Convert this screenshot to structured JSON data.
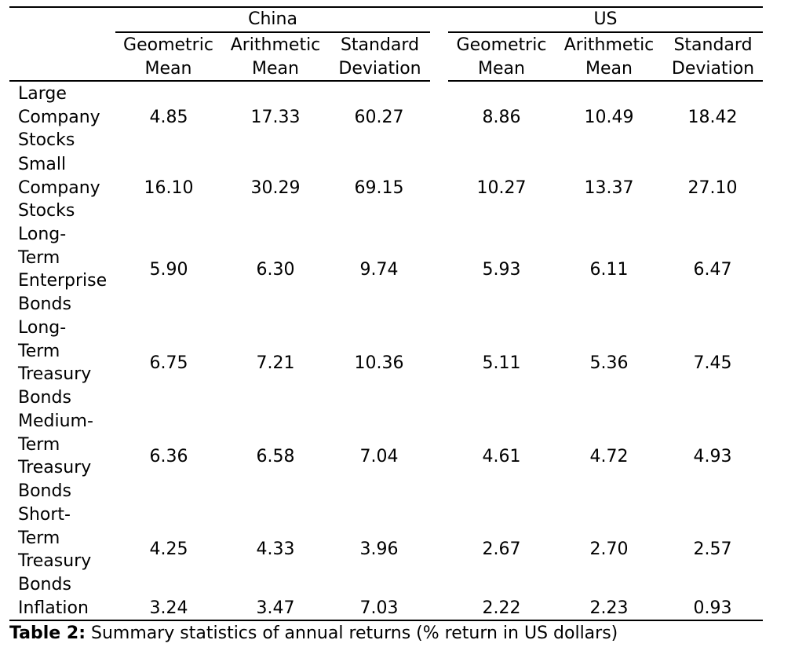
{
  "table": {
    "groups": [
      "China",
      "US"
    ],
    "columns": [
      {
        "line1": "Geometric",
        "line2": "Mean"
      },
      {
        "line1": "Arithmetic",
        "line2": "Mean"
      },
      {
        "line1": "Standard",
        "line2": "Deviation"
      },
      {
        "line1": "Geometric",
        "line2": "Mean"
      },
      {
        "line1": "Arithmetic",
        "line2": "Mean"
      },
      {
        "line1": "Standard",
        "line2": "Deviation"
      }
    ],
    "rows": [
      {
        "label": "Large\nCompany\nStocks",
        "values": [
          "4.85",
          "17.33",
          "60.27",
          "8.86",
          "10.49",
          "18.42"
        ]
      },
      {
        "label": "Small\nCompany\nStocks",
        "values": [
          "16.10",
          "30.29",
          "69.15",
          "10.27",
          "13.37",
          "27.10"
        ]
      },
      {
        "label": "Long-\nTerm\nEnterprise\nBonds",
        "values": [
          "5.90",
          "6.30",
          "9.74",
          "5.93",
          "6.11",
          "6.47"
        ]
      },
      {
        "label": "Long-\nTerm\nTreasury\nBonds",
        "values": [
          "6.75",
          "7.21",
          "10.36",
          "5.11",
          "5.36",
          "7.45"
        ]
      },
      {
        "label": "Medium-\nTerm\nTreasury\nBonds",
        "values": [
          "6.36",
          "6.58",
          "7.04",
          "4.61",
          "4.72",
          "4.93"
        ]
      },
      {
        "label": "Short-\nTerm\nTreasury\nBonds",
        "values": [
          "4.25",
          "4.33",
          "3.96",
          "2.67",
          "2.70",
          "2.57"
        ]
      },
      {
        "label": "Inflation",
        "values": [
          "3.24",
          "3.47",
          "7.03",
          "2.22",
          "2.23",
          "0.93"
        ]
      }
    ]
  },
  "caption": {
    "prefix": "Table 2:",
    "text": " Summary statistics of annual returns (% return in US dollars)"
  }
}
